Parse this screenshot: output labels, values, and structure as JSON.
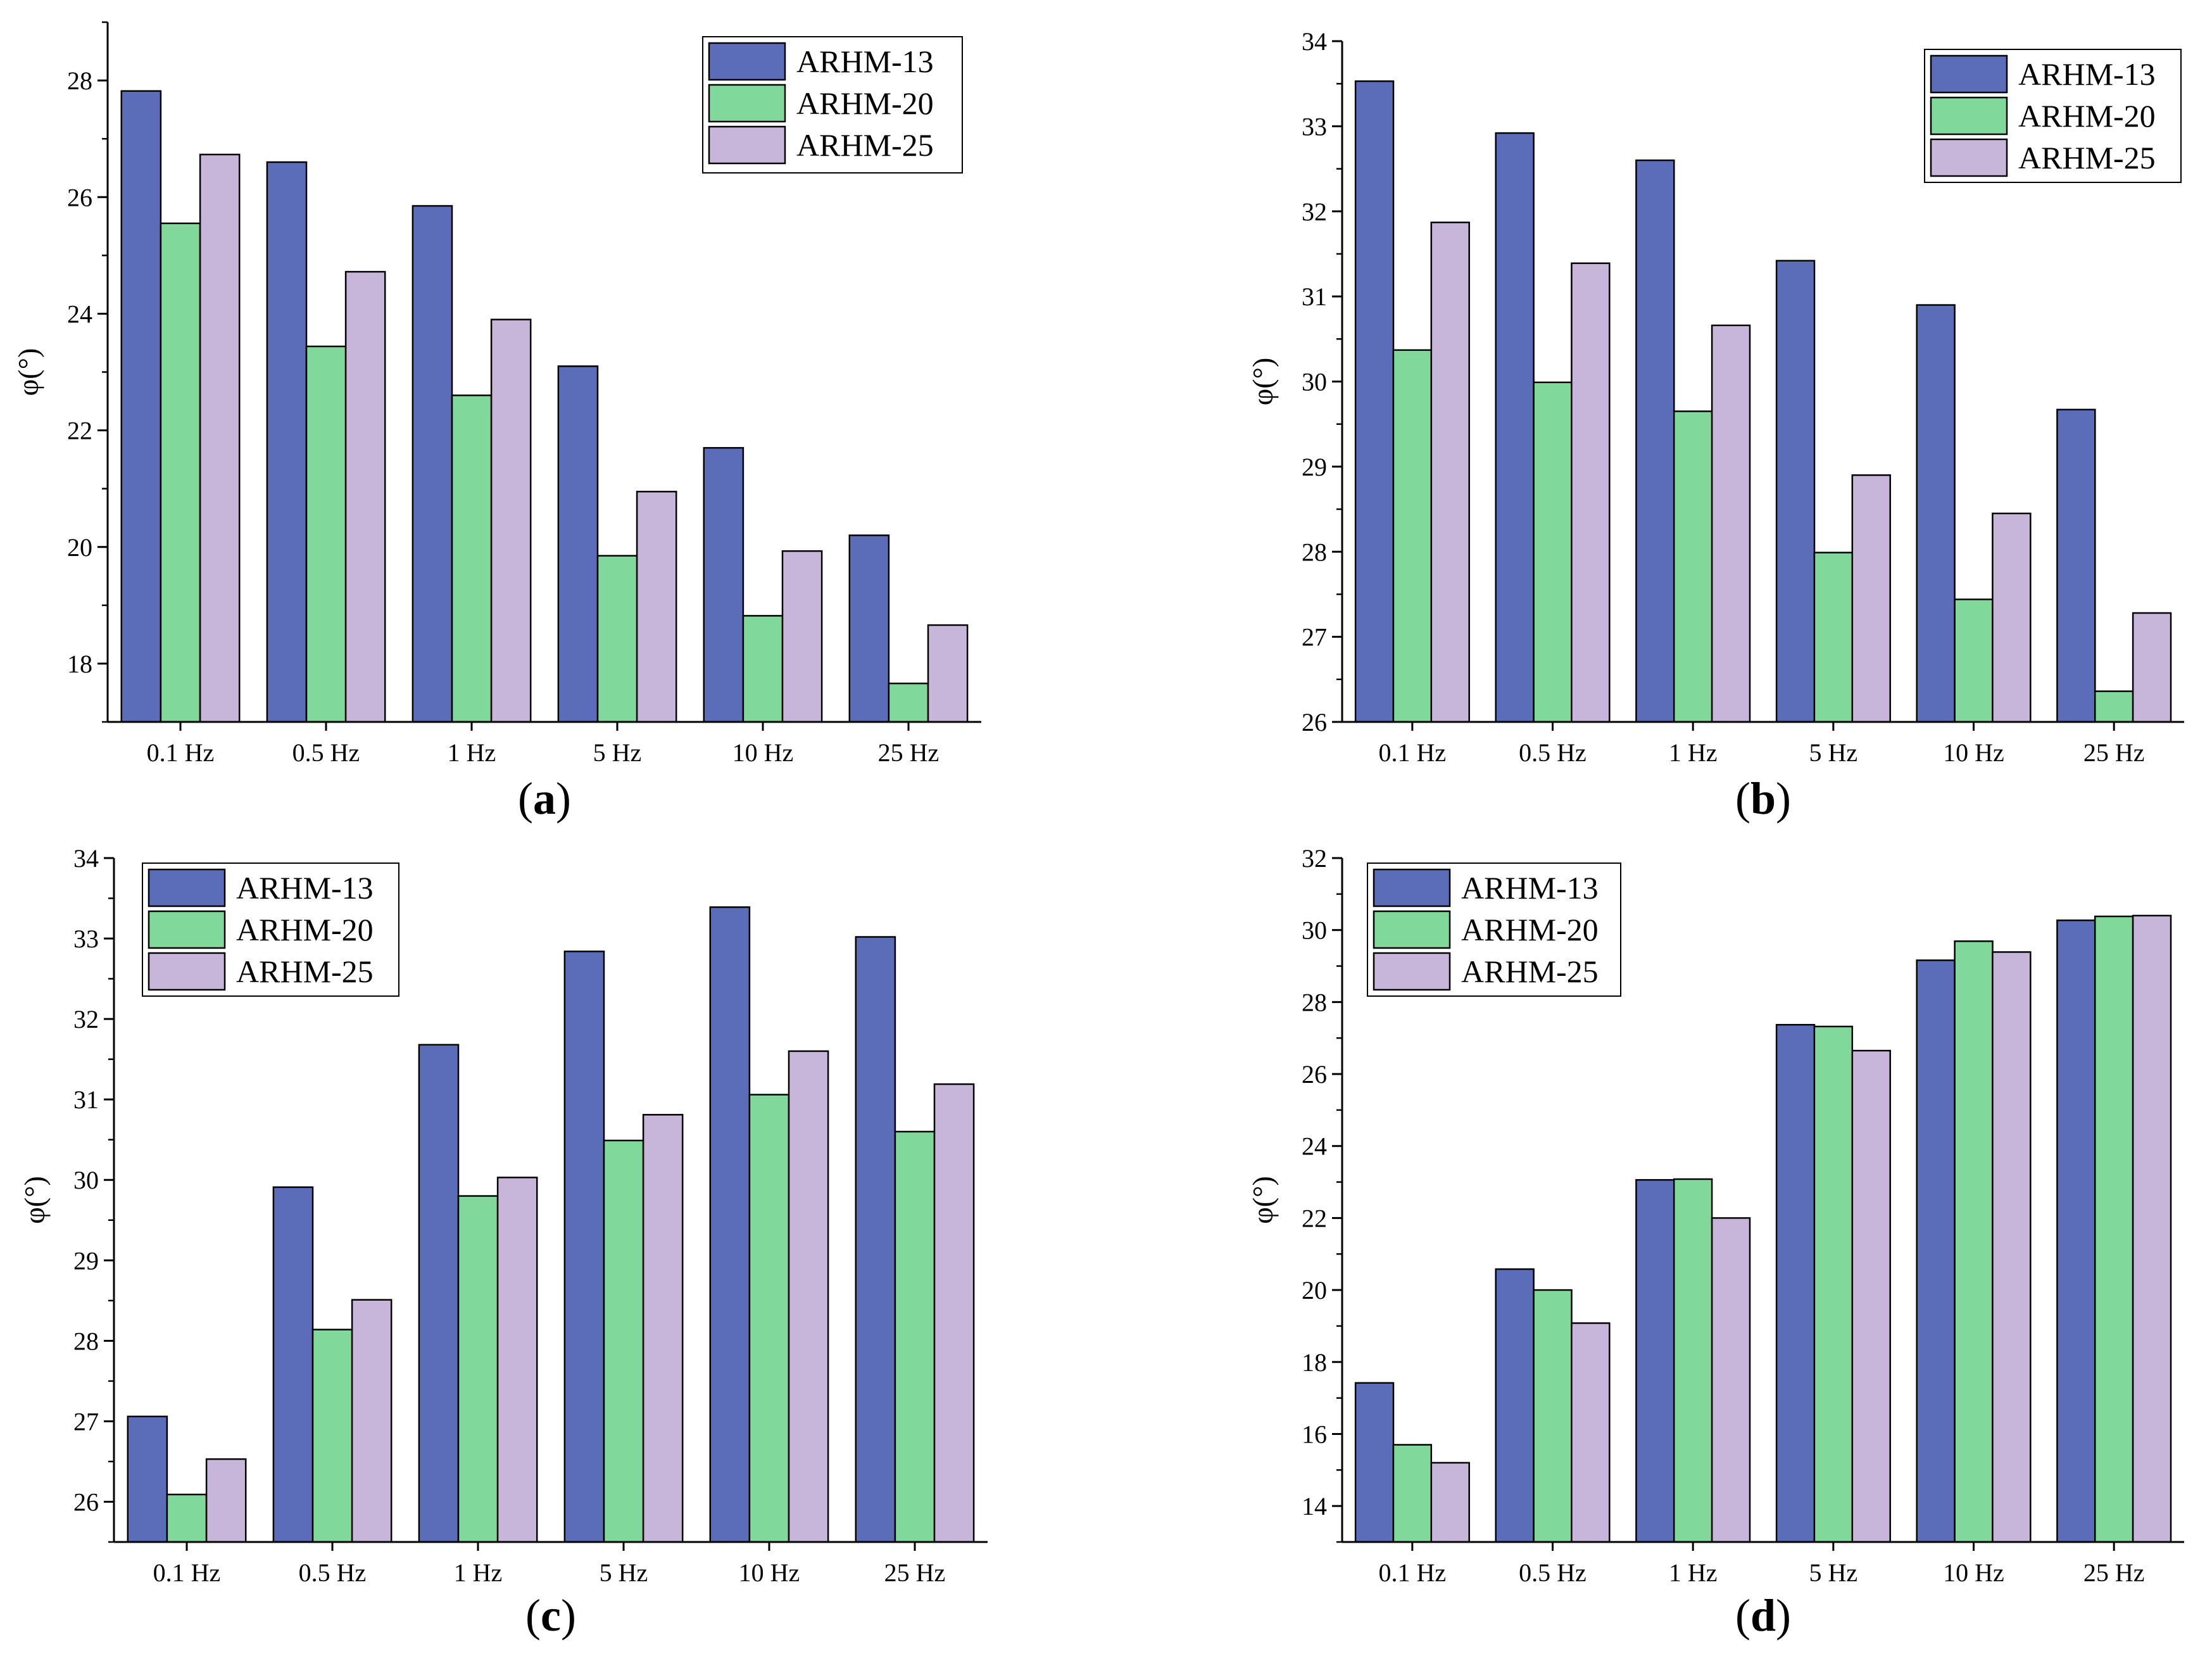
{
  "colors": {
    "ARHM-13": "#5b6db8",
    "ARHM-20": "#80d99a",
    "ARHM-25": "#c8b5da",
    "axis": "#000000",
    "bar_stroke": "#000000"
  },
  "chart_data": [
    {
      "type": "bar",
      "panel_label": "a",
      "ylabel": "φ(°)",
      "xlabel": "",
      "categories": [
        "0.1 Hz",
        "0.5 Hz",
        "1 Hz",
        "5 Hz",
        "10 Hz",
        "25 Hz"
      ],
      "ylim": [
        17,
        29
      ],
      "yticks": [
        18,
        20,
        22,
        24,
        26,
        28
      ],
      "legend": [
        "ARHM-13",
        "ARHM-20",
        "ARHM-25"
      ],
      "legend_position": "top-right",
      "series": [
        {
          "name": "ARHM-13",
          "values": [
            27.82,
            26.6,
            25.85,
            23.1,
            21.7,
            20.2
          ]
        },
        {
          "name": "ARHM-20",
          "values": [
            25.55,
            23.44,
            22.6,
            19.85,
            18.82,
            17.66
          ]
        },
        {
          "name": "ARHM-25",
          "values": [
            26.73,
            24.72,
            23.9,
            20.95,
            19.93,
            18.66
          ]
        }
      ]
    },
    {
      "type": "bar",
      "panel_label": "b",
      "ylabel": "φ(°)",
      "xlabel": "",
      "categories": [
        "0.1 Hz",
        "0.5 Hz",
        "1 Hz",
        "5 Hz",
        "10 Hz",
        "25 Hz"
      ],
      "ylim": [
        26,
        34
      ],
      "yticks": [
        26,
        27,
        28,
        29,
        30,
        31,
        32,
        33,
        34
      ],
      "legend": [
        "ARHM-13",
        "ARHM-20",
        "ARHM-25"
      ],
      "legend_position": "top-right",
      "series": [
        {
          "name": "ARHM-13",
          "values": [
            33.53,
            32.92,
            32.6,
            31.42,
            30.9,
            29.67
          ]
        },
        {
          "name": "ARHM-20",
          "values": [
            30.37,
            29.99,
            29.65,
            27.99,
            27.44,
            26.36
          ]
        },
        {
          "name": "ARHM-25",
          "values": [
            31.87,
            31.39,
            30.66,
            28.9,
            28.45,
            27.28
          ]
        }
      ]
    },
    {
      "type": "bar",
      "panel_label": "c",
      "ylabel": "φ(°)",
      "xlabel": "",
      "categories": [
        "0.1 Hz",
        "0.5 Hz",
        "1 Hz",
        "5 Hz",
        "10 Hz",
        "25 Hz"
      ],
      "ylim": [
        25.5,
        34
      ],
      "yticks": [
        26,
        27,
        28,
        29,
        30,
        31,
        32,
        33,
        34
      ],
      "legend": [
        "ARHM-13",
        "ARHM-20",
        "ARHM-25"
      ],
      "legend_position": "top-left",
      "series": [
        {
          "name": "ARHM-13",
          "values": [
            27.06,
            29.91,
            31.68,
            32.84,
            33.39,
            33.02
          ]
        },
        {
          "name": "ARHM-20",
          "values": [
            26.09,
            28.14,
            29.8,
            30.49,
            31.06,
            30.6
          ]
        },
        {
          "name": "ARHM-25",
          "values": [
            26.53,
            28.51,
            30.03,
            30.81,
            31.6,
            31.19
          ]
        }
      ]
    },
    {
      "type": "bar",
      "panel_label": "d",
      "ylabel": "φ(°)",
      "xlabel": "",
      "categories": [
        "0.1 Hz",
        "0.5 Hz",
        "1 Hz",
        "5 Hz",
        "10 Hz",
        "25 Hz"
      ],
      "ylim": [
        13,
        32
      ],
      "yticks": [
        14,
        16,
        18,
        20,
        22,
        24,
        26,
        28,
        30,
        32
      ],
      "legend": [
        "ARHM-13",
        "ARHM-20",
        "ARHM-25"
      ],
      "legend_position": "top-left",
      "series": [
        {
          "name": "ARHM-13",
          "values": [
            17.42,
            20.58,
            23.06,
            27.37,
            29.16,
            30.27
          ]
        },
        {
          "name": "ARHM-20",
          "values": [
            15.7,
            20.0,
            23.08,
            27.32,
            29.69,
            30.38
          ]
        },
        {
          "name": "ARHM-25",
          "values": [
            15.2,
            19.08,
            22.0,
            26.65,
            29.39,
            30.4
          ]
        }
      ]
    }
  ]
}
